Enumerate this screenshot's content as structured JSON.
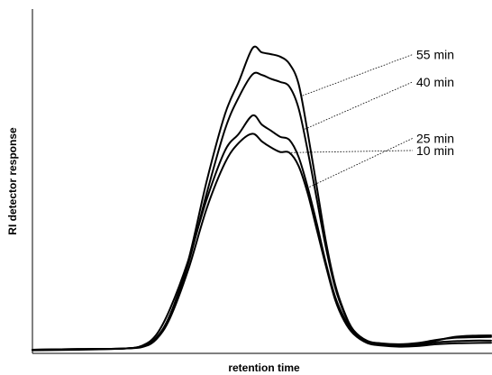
{
  "chart_data": {
    "type": "line",
    "title": "",
    "xlabel": "retention time",
    "ylabel": "RI detector response",
    "grid": false,
    "legend": "direct labels at right end of leader lines",
    "x_ticks_shown": false,
    "y_ticks_shown": false,
    "xlim": [
      0,
      100
    ],
    "ylim": [
      0,
      100
    ],
    "colors": {
      "trace": "#000000",
      "background": "#ffffff"
    },
    "series": [
      {
        "name": "55 min",
        "x": [
          0,
          10,
          20,
          24,
          27,
          30,
          34,
          38,
          42,
          45,
          48,
          50,
          52,
          54,
          56,
          58,
          60,
          62,
          64,
          66,
          68,
          70,
          73,
          76,
          80,
          84,
          88,
          92,
          96,
          100
        ],
        "y": [
          0.6,
          0.8,
          1.0,
          1.8,
          4.5,
          12,
          30,
          56,
          78,
          88.6,
          99.6,
          98.2,
          97.6,
          96.8,
          94.5,
          88,
          72,
          54,
          36,
          22,
          13,
          7,
          3.5,
          2.6,
          2.3,
          2.6,
          3.6,
          4.8,
          5.2,
          5.3
        ],
        "leader_anchor_x": 58.5,
        "label_y": 97.5
      },
      {
        "name": "40 min",
        "x": [
          0,
          10,
          20,
          24,
          27,
          30,
          34,
          38,
          42,
          45,
          48,
          50,
          52,
          54,
          56,
          58,
          60,
          62,
          64,
          66,
          68,
          70,
          73,
          76,
          80,
          84,
          88,
          92,
          96,
          100
        ],
        "y": [
          0.6,
          0.8,
          1.0,
          1.8,
          4.5,
          12,
          29,
          52,
          73,
          83.5,
          91.0,
          90.8,
          89.5,
          88.5,
          87.0,
          80,
          66,
          50,
          34,
          21,
          12.5,
          7,
          3.5,
          2.7,
          2.4,
          2.8,
          3.8,
          4.5,
          4.7,
          4.8
        ],
        "leader_anchor_x": 59,
        "label_y": 88.5
      },
      {
        "name": "25 min",
        "x": [
          0,
          10,
          20,
          24,
          27,
          30,
          34,
          38,
          42,
          45,
          48,
          50,
          52,
          54,
          56,
          58,
          60,
          62,
          64,
          66,
          68,
          70,
          73,
          76,
          80,
          84,
          88,
          92,
          96,
          100
        ],
        "y": [
          0.6,
          0.8,
          1.0,
          2.0,
          5.5,
          14,
          30,
          50,
          66,
          71.5,
          77.5,
          74.5,
          72.5,
          70.5,
          69.5,
          64,
          54,
          42,
          29,
          18,
          11,
          6.5,
          3.2,
          2.3,
          2.0,
          2.2,
          3.0,
          3.4,
          3.6,
          3.6
        ],
        "leader_anchor_x": 60,
        "label_y": 70
      },
      {
        "name": "10 min",
        "x": [
          0,
          10,
          20,
          24,
          27,
          30,
          34,
          38,
          42,
          45,
          48,
          50,
          52,
          54,
          56,
          58,
          60,
          62,
          64,
          66,
          68,
          70,
          73,
          76,
          80,
          84,
          88,
          92,
          96,
          100
        ],
        "y": [
          0.4,
          0.6,
          1.0,
          1.5,
          4.0,
          11,
          27,
          47,
          62,
          68.5,
          71.5,
          69,
          67,
          65.5,
          65.3,
          61,
          52,
          40,
          28,
          17,
          10,
          5.8,
          2.8,
          2.0,
          1.6,
          1.8,
          2.4,
          2.7,
          2.8,
          2.9
        ],
        "leader_anchor_x": 56,
        "label_y": 66
      }
    ]
  }
}
